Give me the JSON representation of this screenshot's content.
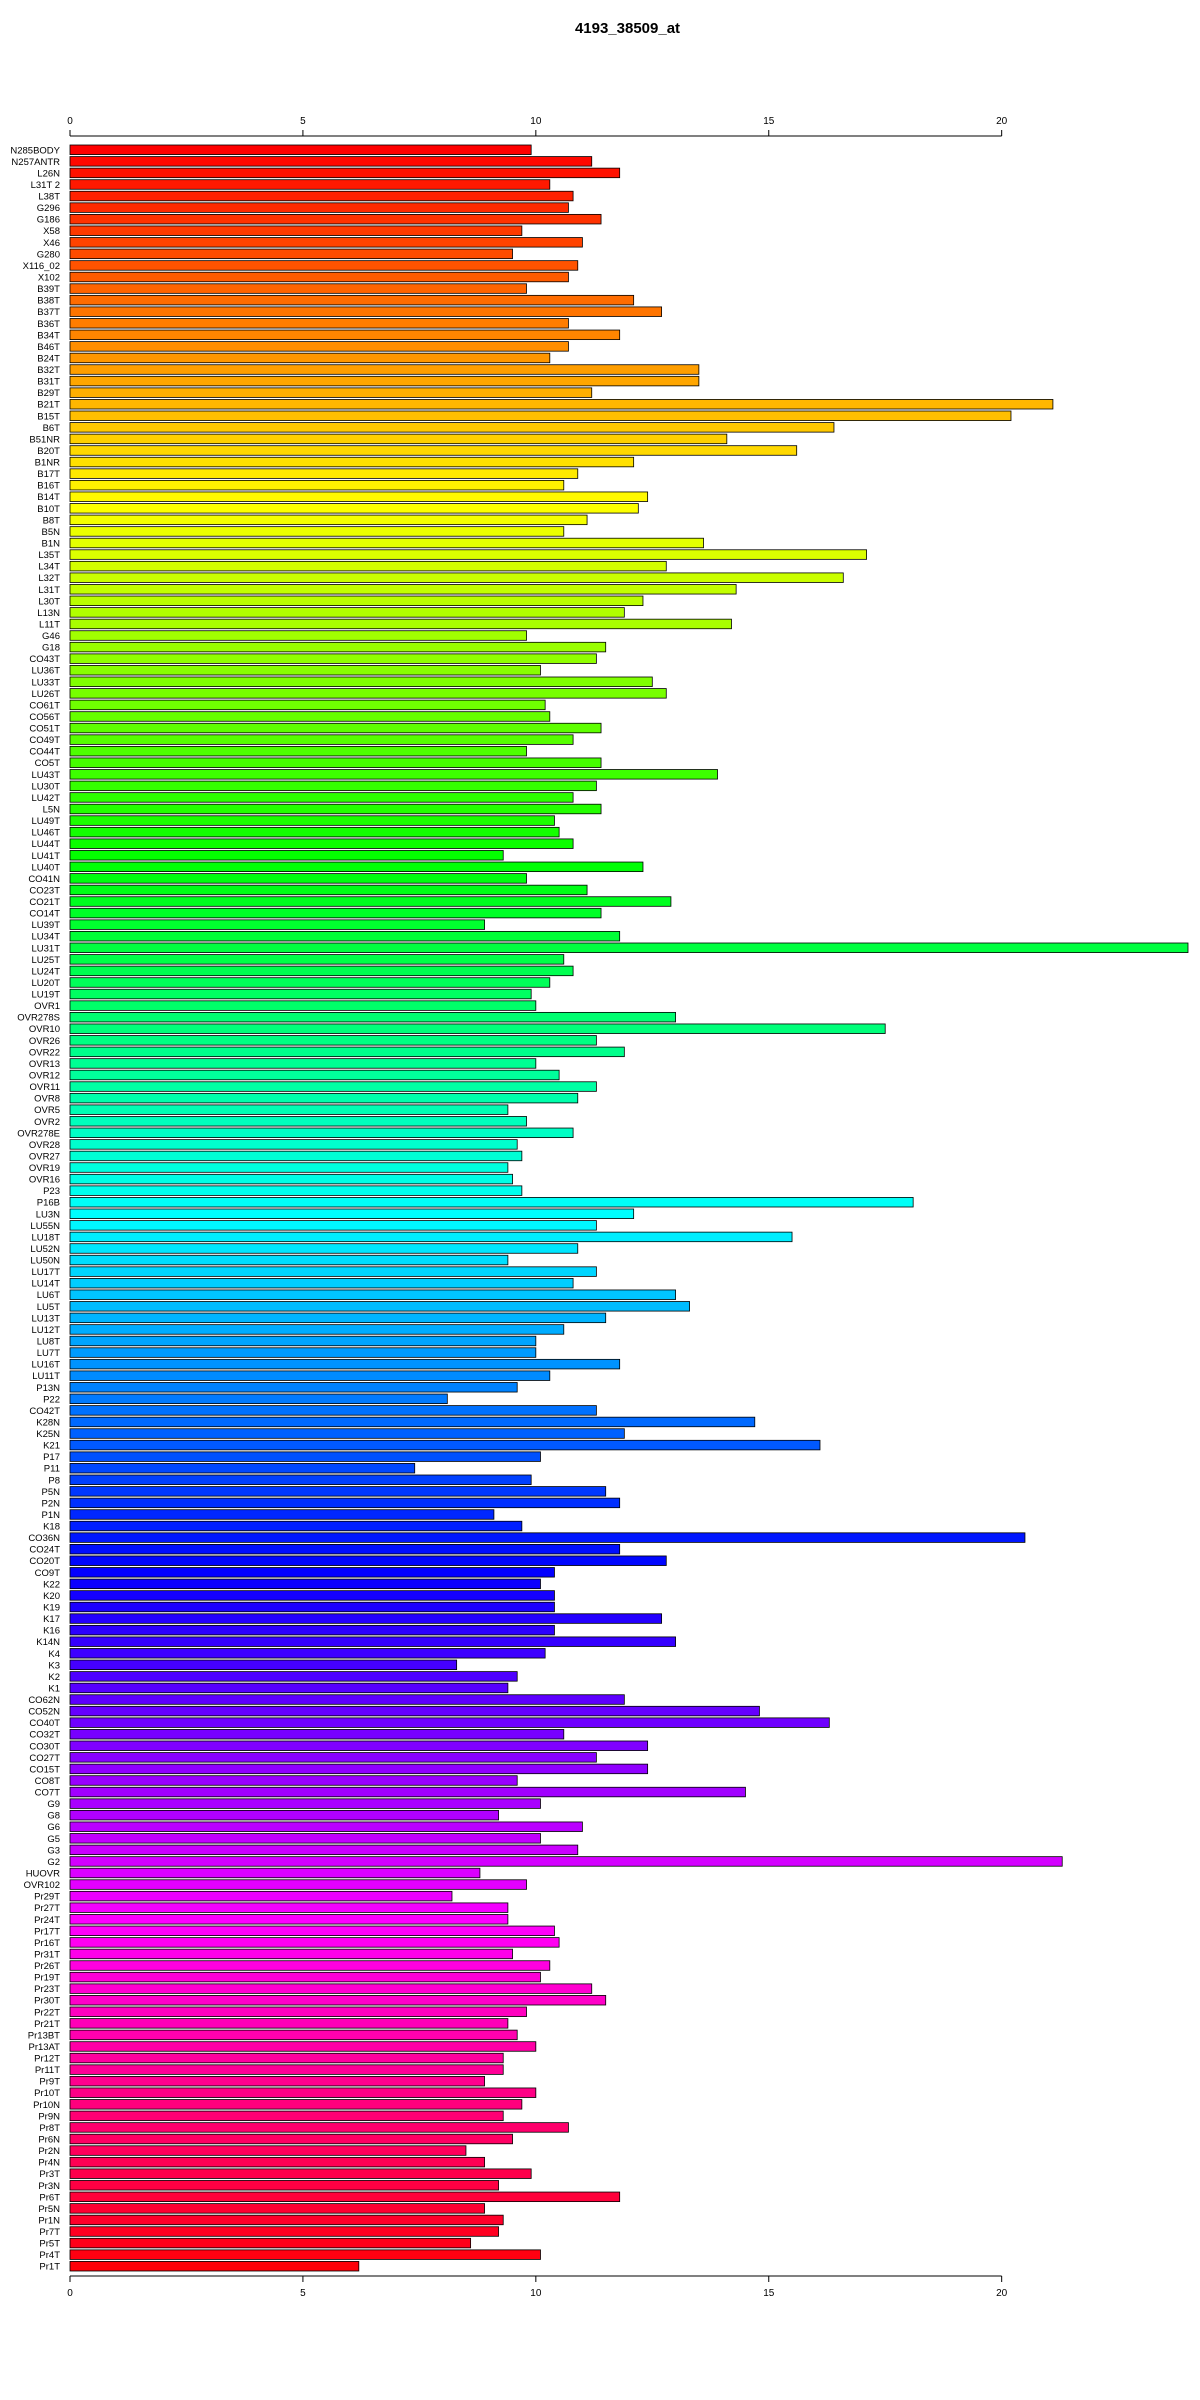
{
  "chart_data": {
    "type": "bar",
    "orientation": "horizontal",
    "title": "4193_38509_at",
    "xlabel": "",
    "ylabel": "",
    "xlim": [
      0,
      24
    ],
    "xticks": [
      0,
      5,
      10,
      15,
      20
    ],
    "grid": false,
    "legend": "none",
    "categories": [
      "N285BODY",
      "N257ANTR",
      "L26N",
      "L31T 2",
      "L38T",
      "G296",
      "G186",
      "X58",
      "X46",
      "G280",
      "X116_02",
      "X102",
      "B39T",
      "B38T",
      "B37T",
      "B36T",
      "B34T",
      "B46T",
      "B24T",
      "B32T",
      "B31T",
      "B29T",
      "B21T",
      "B15T",
      "B6T",
      "B51NR",
      "B20T",
      "B1NR",
      "B17T",
      "B16T",
      "B14T",
      "B10T",
      "B8T",
      "B5N",
      "B1N",
      "L35T",
      "L34T",
      "L32T",
      "L31T",
      "L30T",
      "L13N",
      "L11T",
      "G46",
      "G18",
      "CO43T",
      "LU36T",
      "LU33T",
      "LU26T",
      "CO61T",
      "CO56T",
      "CO51T",
      "CO49T",
      "CO44T",
      "CO5T",
      "LU43T",
      "LU30T",
      "LU42T",
      "L5N",
      "LU49T",
      "LU46T",
      "LU44T",
      "LU41T",
      "LU40T",
      "CO41N",
      "CO23T",
      "CO21T",
      "CO14T",
      "LU39T",
      "LU34T",
      "LU31T",
      "LU25T",
      "LU24T",
      "LU20T",
      "LU19T",
      "OVR1",
      "OVR278S",
      "OVR10",
      "OVR26",
      "OVR22",
      "OVR13",
      "OVR12",
      "OVR11",
      "OVR8",
      "OVR5",
      "OVR2",
      "OVR278E",
      "OVR28",
      "OVR27",
      "OVR19",
      "OVR16",
      "P23",
      "P16B",
      "LU3N",
      "LU55N",
      "LU18T",
      "LU52N",
      "LU50N",
      "LU17T",
      "LU14T",
      "LU6T",
      "LU5T",
      "LU13T",
      "LU12T",
      "LU8T",
      "LU7T",
      "LU16T",
      "LU11T",
      "P13N",
      "P22",
      "CO42T",
      "K28N",
      "K25N",
      "K21",
      "P17",
      "P11",
      "P8",
      "P5N",
      "P2N",
      "P1N",
      "K18",
      "CO36N",
      "CO24T",
      "CO20T",
      "CO9T",
      "K22",
      "K20",
      "K19",
      "K17",
      "K16",
      "K14N",
      "K4",
      "K3",
      "K2",
      "K1",
      "CO62N",
      "CO52N",
      "CO40T",
      "CO32T",
      "CO30T",
      "CO27T",
      "CO15T",
      "CO8T",
      "CO7T",
      "G9",
      "G8",
      "G6",
      "G5",
      "G3",
      "G2",
      "HUOVR",
      "OVR102",
      "Pr29T",
      "Pr27T",
      "Pr24T",
      "Pr17T",
      "Pr16T",
      "Pr31T",
      "Pr26T",
      "Pr19T",
      "Pr23T",
      "Pr30T",
      "Pr22T",
      "Pr21T",
      "Pr13BT",
      "Pr13AT",
      "Pr12T",
      "Pr11T",
      "Pr9T",
      "Pr10T",
      "Pr10N",
      "Pr9N",
      "Pr8T",
      "Pr6N",
      "Pr2N",
      "Pr4N",
      "Pr3T",
      "Pr3N",
      "Pr6T",
      "Pr5N",
      "Pr1N",
      "Pr7T",
      "Pr5T",
      "Pr4T",
      "Pr1T"
    ],
    "values": [
      9.9,
      11.2,
      11.8,
      10.3,
      10.8,
      10.7,
      11.4,
      9.7,
      11.0,
      9.5,
      10.9,
      10.7,
      9.8,
      12.1,
      12.7,
      10.7,
      11.8,
      10.7,
      10.3,
      13.5,
      13.5,
      11.2,
      21.1,
      20.2,
      16.4,
      14.1,
      15.6,
      12.1,
      10.9,
      10.6,
      12.4,
      12.2,
      11.1,
      10.6,
      13.6,
      17.1,
      12.8,
      16.6,
      14.3,
      12.3,
      11.9,
      14.2,
      9.8,
      11.5,
      11.3,
      10.1,
      12.5,
      12.8,
      10.2,
      10.3,
      11.4,
      10.8,
      9.8,
      11.4,
      13.9,
      11.3,
      10.8,
      11.4,
      10.4,
      10.5,
      10.8,
      9.3,
      12.3,
      9.8,
      11.1,
      12.9,
      11.4,
      8.9,
      11.8,
      24.0,
      10.6,
      10.8,
      10.3,
      9.9,
      10.0,
      13.0,
      17.5,
      11.3,
      11.9,
      10.0,
      10.5,
      11.3,
      10.9,
      9.4,
      9.8,
      10.8,
      9.6,
      9.7,
      9.4,
      9.5,
      9.7,
      18.1,
      12.1,
      11.3,
      15.5,
      10.9,
      9.4,
      11.3,
      10.8,
      13.0,
      13.3,
      11.5,
      10.6,
      10.0,
      10.0,
      11.8,
      10.3,
      9.6,
      8.1,
      11.3,
      14.7,
      11.9,
      16.1,
      10.1,
      7.4,
      9.9,
      11.5,
      11.8,
      9.1,
      9.7,
      20.5,
      11.8,
      12.8,
      10.4,
      10.1,
      10.4,
      10.4,
      12.7,
      10.4,
      13.0,
      10.2,
      8.3,
      9.6,
      9.4,
      11.9,
      14.8,
      16.3,
      10.6,
      12.4,
      11.3,
      12.4,
      9.6,
      14.5,
      10.1,
      9.2,
      11.0,
      10.1,
      10.9,
      21.3,
      8.8,
      9.8,
      8.2,
      9.4,
      9.4,
      10.4,
      10.5,
      9.5,
      10.3,
      10.1,
      11.2,
      11.5,
      9.8,
      9.4,
      9.6,
      10.0,
      9.3,
      9.3,
      8.9,
      10.0,
      9.7,
      9.3,
      10.7,
      9.5,
      8.5,
      8.9,
      9.9,
      9.2,
      11.8,
      8.9,
      9.3,
      9.2,
      8.6,
      10.1,
      6.2
    ]
  }
}
